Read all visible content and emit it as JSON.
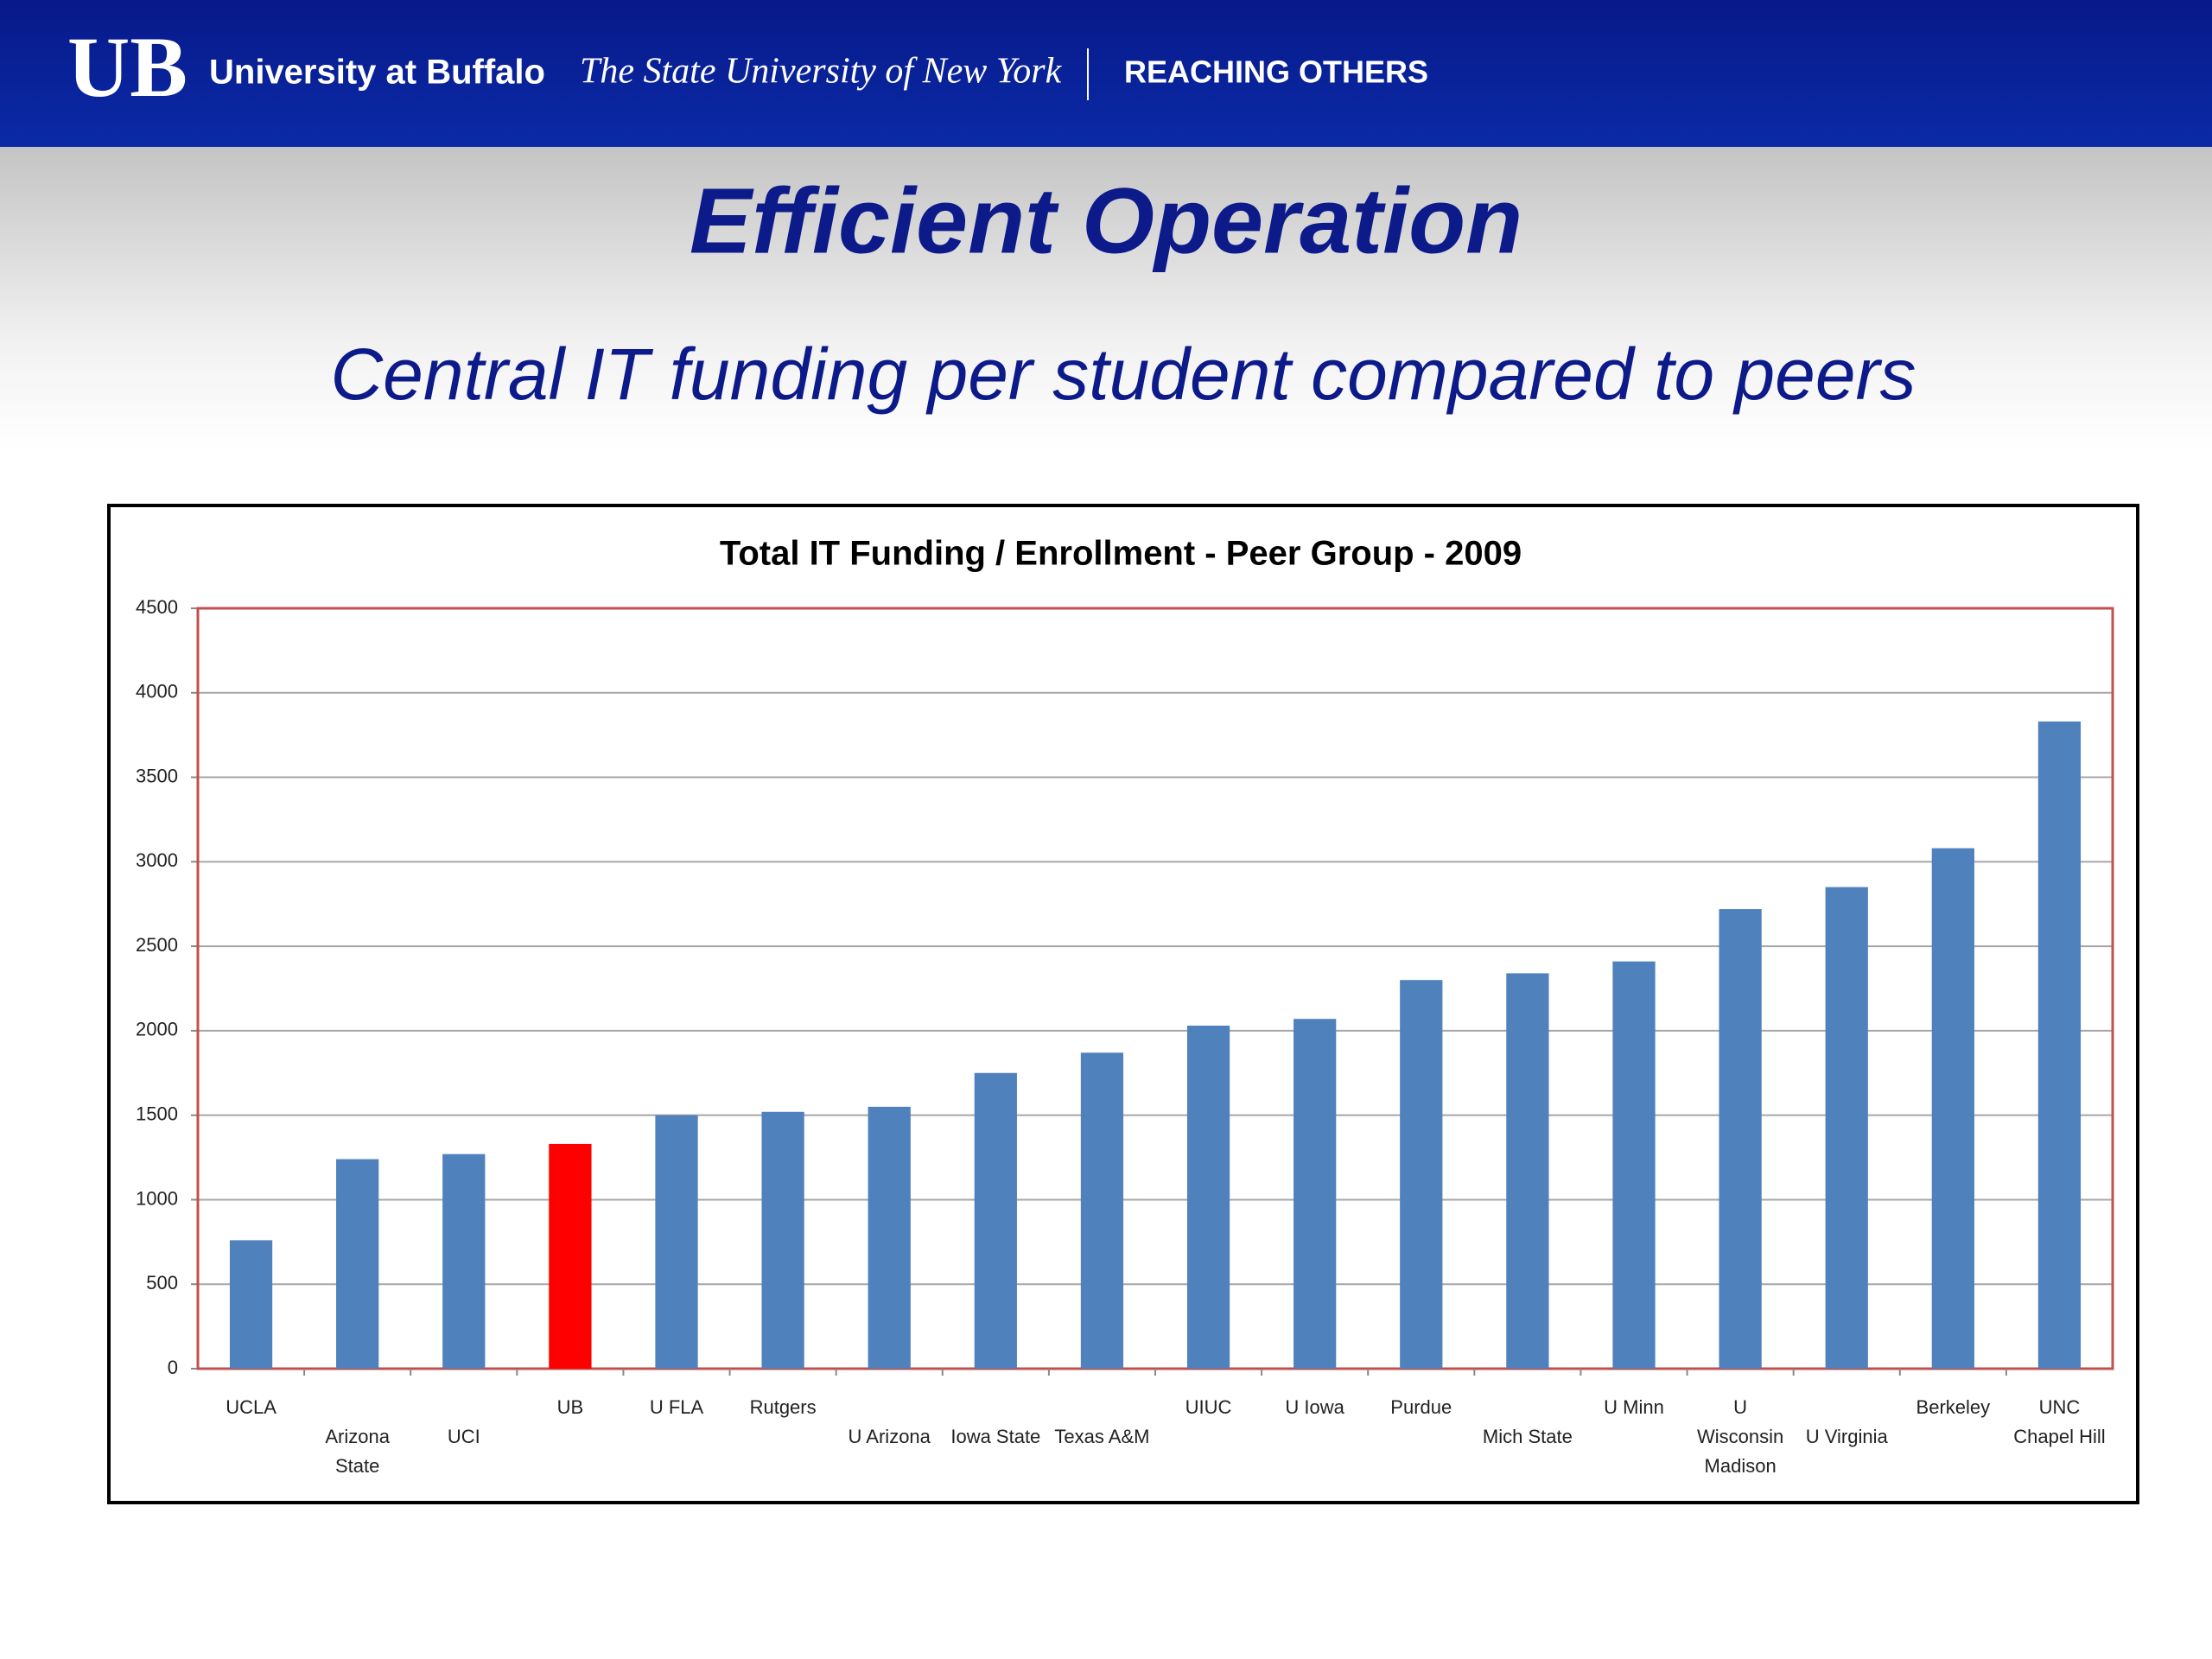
{
  "header": {
    "logo": "UB",
    "university": "University at Buffalo",
    "system": "The State University of New York",
    "tagline": "REACHING OTHERS"
  },
  "title": "Efficient Operation",
  "subtitle": "Central IT funding per student compared to peers",
  "chart_data": {
    "type": "bar",
    "title": "Total IT Funding / Enrollment - Peer Group - 2009",
    "categories": [
      "UCLA",
      "Arizona\nState",
      "UCI",
      "UB",
      "U FLA",
      "Rutgers",
      "U Arizona",
      "Iowa State",
      "Texas A&M",
      "UIUC",
      "U Iowa",
      "Purdue",
      "Mich State",
      "U Minn",
      "U\nWisconsin\nMadison",
      "U Virginia",
      "Berkeley",
      "UNC\nChapel Hill"
    ],
    "values": [
      760,
      1240,
      1270,
      1330,
      1500,
      1520,
      1550,
      1750,
      1870,
      2030,
      2070,
      2300,
      2340,
      2410,
      2720,
      2850,
      3080,
      3830
    ],
    "colors": [
      "#4f81bd",
      "#4f81bd",
      "#4f81bd",
      "#ff0000",
      "#4f81bd",
      "#4f81bd",
      "#4f81bd",
      "#4f81bd",
      "#4f81bd",
      "#4f81bd",
      "#4f81bd",
      "#4f81bd",
      "#4f81bd",
      "#4f81bd",
      "#4f81bd",
      "#4f81bd",
      "#4f81bd",
      "#4f81bd"
    ],
    "ylim": [
      0,
      4500
    ],
    "yticks": [
      0,
      500,
      1000,
      1500,
      2000,
      2500,
      3000,
      3500,
      4000,
      4500
    ],
    "grid": true
  }
}
